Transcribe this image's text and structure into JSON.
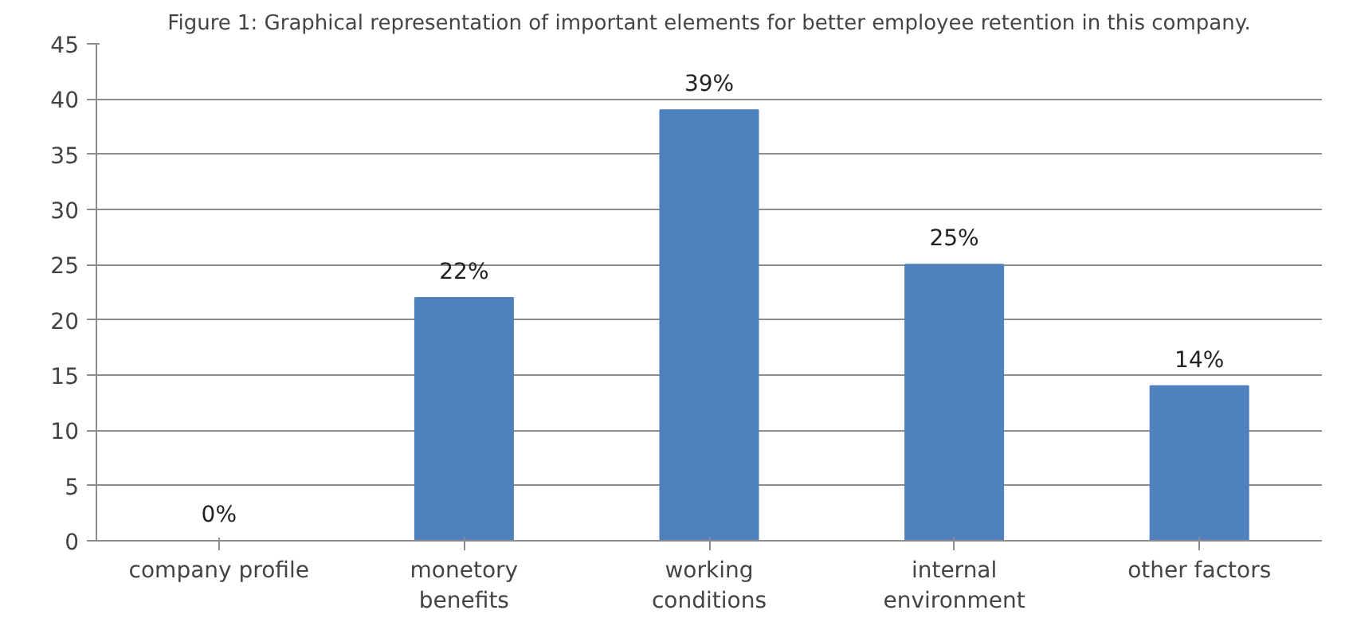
{
  "chart_data": {
    "type": "bar",
    "title": "Figure 1: Graphical representation of important elements for better employee retention in this company.",
    "categories": [
      "company profile",
      "monetory\nbenefits",
      "working\nconditions",
      "internal\nenvironment",
      "other factors"
    ],
    "values": [
      0,
      22,
      39,
      25,
      14
    ],
    "value_labels": [
      "0%",
      "22%",
      "39%",
      "25%",
      "14%"
    ],
    "color": "#4f81bd",
    "ylim": [
      0,
      45
    ],
    "yticks": [
      0,
      5,
      10,
      15,
      20,
      25,
      30,
      35,
      40,
      45
    ],
    "grid": "y"
  }
}
